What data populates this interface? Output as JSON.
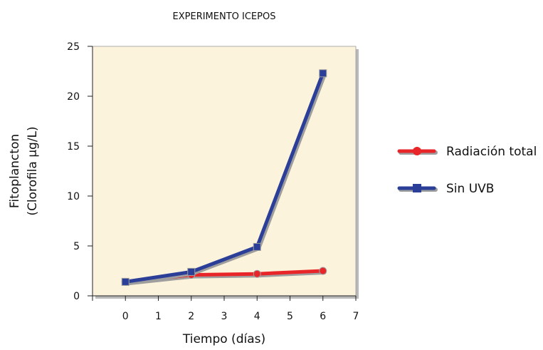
{
  "chart_data": {
    "type": "line",
    "title": "EXPERIMENTO ICEPOS",
    "xlabel": "Tiempo (días)",
    "ylabel_lines": [
      "Fitoplancton",
      "(Clorofila µg/L)"
    ],
    "xlim": [
      -1,
      7
    ],
    "ylim": [
      0,
      25
    ],
    "xticks": [
      "0",
      "1",
      "2",
      "3",
      "4",
      "5",
      "6",
      "7"
    ],
    "yticks": [
      "0",
      "5",
      "10",
      "15",
      "20",
      "25"
    ],
    "grid": false,
    "legend_position": "right",
    "plot_background": "#fcf3dc",
    "series": [
      {
        "name": "Radiación total",
        "color": "#e8262a",
        "marker": "circle",
        "x": [
          0,
          2,
          4,
          6
        ],
        "y": [
          1.4,
          2.1,
          2.2,
          2.5
        ]
      },
      {
        "name": "Sin UVB",
        "color": "#2b3e98",
        "marker": "square",
        "x": [
          0,
          2,
          4,
          6
        ],
        "y": [
          1.4,
          2.4,
          4.9,
          22.3
        ]
      }
    ]
  }
}
